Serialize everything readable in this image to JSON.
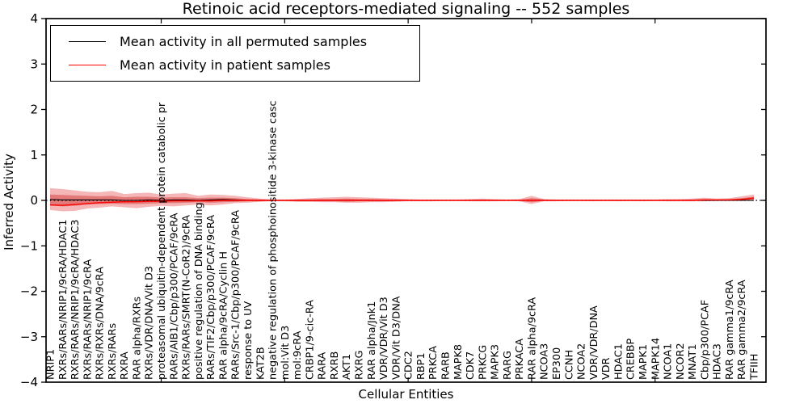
{
  "figure": {
    "title": "Retinoic acid receptors-mediated signaling -- 552 samples",
    "xlabel": "Cellular Entities",
    "ylabel": "Inferred Activity"
  },
  "legend": {
    "items": [
      {
        "label": "Mean activity in all permuted samples",
        "color": "#000000"
      },
      {
        "label": "Mean activity in patient samples",
        "color": "#ff0000"
      }
    ]
  },
  "colors": {
    "permuted_line": "#000000",
    "patient_line": "#ff0000",
    "band_fill": "#dd2222",
    "axes": "#000000",
    "background": "#ffffff"
  },
  "chart_data": {
    "type": "line",
    "title": "Retinoic acid receptors-mediated signaling -- 552 samples",
    "xlabel": "Cellular Entities",
    "ylabel": "Inferred Activity",
    "ylim": [
      -4,
      4
    ],
    "yticks": [
      4,
      3,
      2,
      1,
      0,
      -1,
      -2,
      -3,
      -4
    ],
    "grid": false,
    "legend_position": "upper left",
    "zero_line": {
      "style": "dotted",
      "color": "#000000",
      "y": 0
    },
    "categories": [
      "NRIP1",
      "RXRs/RARs/NRIP1/9cRA/HDAC1",
      "RXRs/RARs/NRIP1/9cRA/HDAC3",
      "RXRs/RARs/NRIP1/9cRA",
      "RXRs/RXRs/DNA/9cRA",
      "RXRs/RARs",
      "RXRA",
      "RAR alpha/RXRs",
      "RXRs/VDR/DNA/Vit D3",
      "proteasomal ubiquitin-dependent protein catabolic pr",
      "RARs/AIB1/Cbp/p300/PCAF/9cRA",
      "RXRs/RARs/SMRT(N-CoR2)/9cRA",
      "positive regulation of DNA binding",
      "RARs/TIF2/Cbp/p300/PCAF/9cRA",
      "RAR alpha/9cRA/Cyclin H",
      "RARs/Src-1/Cbp/p300/PCAF/9cRA",
      "response to UV",
      "KAT2B",
      "negative regulation of phosphoinositide 3-kinase casc",
      "mol:Vit D3",
      "mol:9cRA",
      "CRBP1/9-cic-RA",
      "RARA",
      "RXRB",
      "AKT1",
      "RXRG",
      "RAR alpha/Jnk1",
      "VDR/VDR/Vit D3",
      "VDR/Vit D3/DNA",
      "CDC2",
      "RBP1",
      "PRKCA",
      "RARB",
      "MAPK8",
      "CDK7",
      "PRKCG",
      "MAPK3",
      "RARG",
      "PRKACA",
      "RAR alpha/9cRA",
      "NCOA3",
      "EP300",
      "CCNH",
      "NCOA2",
      "VDR/VDR/DNA",
      "VDR",
      "HDAC1",
      "CREBBP",
      "MAPK1",
      "MAPK14",
      "NCOA1",
      "NCOR2",
      "MNAT1",
      "Cbp/p300/PCAF",
      "HDAC3",
      "RAR gamma1/9cRA",
      "RAR gamma2/9cRA",
      "TFIIH"
    ],
    "series": [
      {
        "name": "Mean activity in all permuted samples",
        "color": "#000000",
        "values": [
          0.02,
          0.01,
          0.01,
          0.01,
          0.01,
          0.01,
          0.0,
          0.0,
          0.01,
          0.0,
          0.01,
          0.01,
          0.0,
          0.01,
          0.02,
          0.01,
          0.0,
          0.0,
          0,
          0,
          0,
          0,
          0,
          0,
          0,
          0,
          0,
          0,
          0,
          0,
          0,
          0,
          0,
          0,
          0,
          0,
          0,
          0,
          0,
          0,
          0,
          0,
          0,
          0,
          0,
          0,
          0,
          0,
          0,
          0,
          0,
          0,
          0,
          0,
          0,
          0,
          0,
          0
        ]
      },
      {
        "name": "Mean activity in patient samples",
        "color": "#ff0000",
        "values": [
          -0.1,
          -0.11,
          -0.09,
          -0.07,
          -0.05,
          -0.04,
          -0.03,
          -0.03,
          -0.02,
          -0.02,
          -0.01,
          -0.01,
          -0.01,
          -0.01,
          0,
          0,
          0,
          0,
          0,
          0,
          0,
          0,
          0,
          0,
          0,
          0,
          0,
          0,
          0,
          0,
          0,
          0,
          0,
          0,
          0,
          0,
          0,
          0,
          0,
          0,
          0,
          0,
          0,
          0,
          0,
          0,
          0,
          0,
          0,
          0,
          0,
          0,
          0,
          0.01,
          0.01,
          0.01,
          0.02,
          0.05
        ]
      }
    ],
    "bands": [
      {
        "name": "patient activity spread (outer)",
        "color": "#dd2222",
        "opacity": 0.33,
        "upper": [
          0.27,
          0.25,
          0.22,
          0.19,
          0.18,
          0.21,
          0.14,
          0.16,
          0.17,
          0.13,
          0.15,
          0.16,
          0.1,
          0.13,
          0.12,
          0.1,
          0.07,
          0.04,
          0.02,
          0.02,
          0.03,
          0.05,
          0.06,
          0.07,
          0.08,
          0.07,
          0.06,
          0.05,
          0.04,
          0.03,
          0.02,
          0.02,
          0.02,
          0.02,
          0.03,
          0.04,
          0.03,
          0.02,
          0.03,
          0.1,
          0.03,
          0.02,
          0.02,
          0.02,
          0.02,
          0.02,
          0.02,
          0.02,
          0.02,
          0.02,
          0.03,
          0.03,
          0.04,
          0.06,
          0.04,
          0.05,
          0.09,
          0.13
        ],
        "lower": [
          -0.21,
          -0.24,
          -0.23,
          -0.18,
          -0.16,
          -0.13,
          -0.15,
          -0.17,
          -0.14,
          -0.12,
          -0.13,
          -0.11,
          -0.09,
          -0.11,
          -0.09,
          -0.06,
          -0.05,
          -0.03,
          -0.02,
          -0.02,
          -0.03,
          -0.03,
          -0.04,
          -0.04,
          -0.05,
          -0.05,
          -0.04,
          -0.04,
          -0.03,
          -0.02,
          -0.02,
          -0.02,
          -0.01,
          -0.01,
          -0.02,
          -0.02,
          -0.02,
          -0.01,
          -0.02,
          -0.08,
          -0.02,
          -0.02,
          -0.01,
          -0.01,
          -0.02,
          -0.01,
          -0.02,
          -0.01,
          -0.02,
          -0.01,
          -0.02,
          -0.02,
          -0.02,
          -0.02,
          -0.01,
          -0.01,
          0.0,
          0.01
        ]
      },
      {
        "name": "patient activity spread (inner)",
        "color": "#cc1f1f",
        "opacity": 0.4,
        "upper": [
          0.13,
          0.12,
          0.11,
          0.1,
          0.09,
          0.1,
          0.07,
          0.08,
          0.08,
          0.06,
          0.07,
          0.07,
          0.05,
          0.06,
          0.06,
          0.05,
          0.03,
          0.02,
          0.01,
          0.01,
          0.02,
          0.02,
          0.03,
          0.03,
          0.04,
          0.03,
          0.03,
          0.02,
          0.02,
          0.01,
          0.01,
          0.01,
          0.01,
          0.01,
          0.01,
          0.02,
          0.01,
          0.01,
          0.01,
          0.05,
          0.02,
          0.01,
          0.01,
          0.01,
          0.01,
          0.01,
          0.01,
          0.01,
          0.01,
          0.01,
          0.01,
          0.01,
          0.02,
          0.03,
          0.02,
          0.03,
          0.05,
          0.08
        ],
        "lower": [
          -0.11,
          -0.13,
          -0.12,
          -0.09,
          -0.08,
          -0.07,
          -0.08,
          -0.08,
          -0.07,
          -0.06,
          -0.06,
          -0.05,
          -0.04,
          -0.05,
          -0.04,
          -0.03,
          -0.02,
          -0.02,
          -0.01,
          -0.01,
          -0.02,
          -0.02,
          -0.02,
          -0.02,
          -0.03,
          -0.02,
          -0.02,
          -0.02,
          -0.01,
          -0.01,
          -0.01,
          -0.01,
          -0.01,
          -0.01,
          -0.01,
          -0.01,
          -0.01,
          -0.01,
          -0.01,
          -0.04,
          -0.01,
          -0.01,
          -0.01,
          -0.01,
          -0.01,
          -0.01,
          -0.01,
          -0.01,
          -0.01,
          -0.01,
          -0.01,
          -0.01,
          -0.01,
          -0.01,
          -0.01,
          0.0,
          0.0,
          0.02
        ]
      }
    ]
  }
}
